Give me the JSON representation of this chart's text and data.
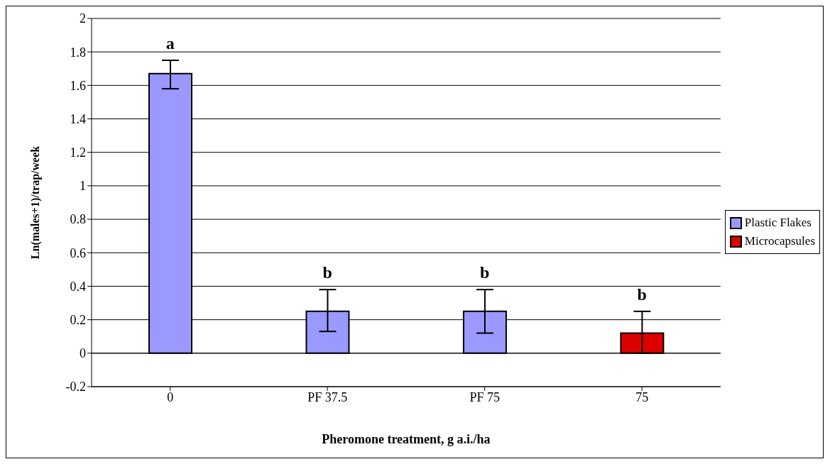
{
  "chart_data": {
    "type": "bar",
    "xlabel": "Pheromone treatment, g a.i./ha",
    "ylabel": "Ln(males+1)/trap/week",
    "categories": [
      "0",
      "PF 37.5",
      "PF 75",
      "75"
    ],
    "series": [
      {
        "name": "Plastic Flakes",
        "color": "#9999ff",
        "values": [
          1.67,
          0.25,
          0.25,
          null
        ],
        "errors": [
          [
            1.58,
            1.75
          ],
          [
            0.13,
            0.38
          ],
          [
            0.12,
            0.38
          ],
          null
        ]
      },
      {
        "name": "Microcapsules",
        "color": "#dd0000",
        "values": [
          null,
          null,
          null,
          0.12
        ],
        "errors": [
          null,
          null,
          null,
          [
            0,
            0.25
          ]
        ]
      }
    ],
    "ylim": [
      -0.2,
      2
    ],
    "yticks": [
      -0.2,
      0,
      0.2,
      0.4,
      0.6,
      0.8,
      1,
      1.2,
      1.4,
      1.6,
      1.8,
      2
    ],
    "grid": "y",
    "legend": "right",
    "annotations": [
      "a",
      "b",
      "b",
      "b"
    ]
  }
}
